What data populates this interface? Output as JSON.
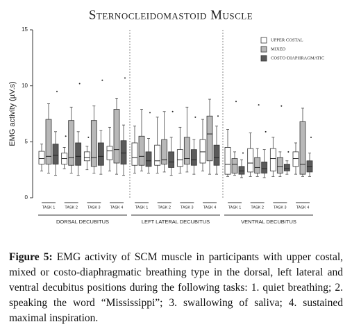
{
  "chart_data": {
    "type": "box",
    "title": "Sternocleidomastoid Muscle",
    "y_label": "EMG activity (µV.s)",
    "ylim": [
      0,
      15
    ],
    "yticks": [
      0,
      5,
      10,
      15
    ],
    "grid": false,
    "legend": "top-right",
    "groups": [
      "DORSAL DECUBITUS",
      "LEFT LATERAL DECUBITUS",
      "VENTRAL DECUBITUS"
    ],
    "categories": [
      "TASK 1",
      "TASK 2",
      "TASK 3",
      "TASK 4",
      "TASK 1",
      "TASK 2",
      "TASK 3",
      "TASK 4",
      "TASK 1",
      "TASK 2",
      "TASK 3",
      "TASK 4"
    ],
    "series": [
      {
        "name": "UPPER COSTAL",
        "color": "#ffffff",
        "values": [
          [
            2.4,
            3.0,
            3.5,
            4.15,
            4.8
          ],
          [
            2.6,
            3.0,
            3.5,
            4.0,
            4.5
          ],
          [
            2.5,
            3.3,
            3.6,
            4.1,
            4.6
          ],
          [
            2.4,
            3.4,
            4.2,
            4.6,
            6.3
          ],
          [
            2.2,
            2.9,
            3.6,
            4.9,
            6.4
          ],
          [
            2.2,
            2.9,
            3.3,
            4.7,
            7.2
          ],
          [
            2.2,
            2.8,
            3.4,
            4.3,
            6.3
          ],
          [
            2.4,
            3.1,
            4.1,
            5.2,
            7.0
          ],
          [
            1.9,
            2.1,
            3.0,
            4.5,
            6.1
          ],
          [
            1.9,
            2.3,
            3.1,
            4.4,
            5.8
          ],
          [
            1.9,
            2.4,
            3.5,
            4.4,
            5.4
          ],
          [
            2.1,
            2.8,
            3.5,
            4.1,
            4.9
          ]
        ],
        "outliers": [
          [],
          [
            5.5
          ],
          [
            5.4
          ],
          [],
          [],
          [],
          [],
          [],
          [],
          [],
          [],
          []
        ]
      },
      {
        "name": "MIXED",
        "color": "#b8b8b8",
        "values": [
          [
            2.2,
            3.0,
            3.7,
            7.0,
            8.4
          ],
          [
            2.2,
            2.9,
            3.6,
            6.9,
            8.1
          ],
          [
            2.2,
            2.8,
            3.6,
            6.9,
            8.2
          ],
          [
            2.1,
            3.1,
            4.3,
            7.9,
            8.9
          ],
          [
            2.4,
            2.9,
            3.7,
            5.5,
            7.9
          ],
          [
            2.3,
            3.0,
            3.4,
            5.2,
            7.7
          ],
          [
            2.3,
            3.0,
            3.5,
            5.4,
            8.1
          ],
          [
            2.1,
            3.3,
            5.7,
            7.3,
            8.8
          ],
          [
            2.0,
            2.2,
            3.0,
            3.5,
            4.1
          ],
          [
            1.9,
            2.2,
            2.7,
            3.6,
            4.4
          ],
          [
            1.9,
            2.2,
            2.8,
            3.6,
            4.1
          ],
          [
            1.9,
            2.1,
            3.0,
            6.8,
            8.0
          ]
        ],
        "outliers": [
          [],
          [],
          [],
          [],
          [],
          [],
          [],
          [],
          [
            8.6
          ],
          [
            8.3
          ],
          [
            8.2
          ],
          []
        ]
      },
      {
        "name": "COSTO-DIAPHRAGMATIC",
        "color": "#5a5a5a",
        "values": [
          [
            2.0,
            3.0,
            3.8,
            4.8,
            5.9
          ],
          [
            2.0,
            2.9,
            3.7,
            4.9,
            5.9
          ],
          [
            2.1,
            2.9,
            3.7,
            4.9,
            6.0
          ],
          [
            2.0,
            3.0,
            4.0,
            5.1,
            6.5
          ],
          [
            2.2,
            2.8,
            3.3,
            4.1,
            5.3
          ],
          [
            2.0,
            2.7,
            3.2,
            4.1,
            5.4
          ],
          [
            2.1,
            2.9,
            3.4,
            4.3,
            5.2
          ],
          [
            2.1,
            2.9,
            3.6,
            4.7,
            6.4
          ],
          [
            1.8,
            2.1,
            2.4,
            2.8,
            3.4
          ],
          [
            1.8,
            2.2,
            2.6,
            3.2,
            4.3
          ],
          [
            2.1,
            2.4,
            2.6,
            3.0,
            3.3
          ],
          [
            1.9,
            2.3,
            2.8,
            3.3,
            4.0
          ]
        ],
        "outliers": [
          [
            9.5
          ],
          [
            10.2
          ],
          [
            10.5
          ],
          [
            10.7
          ],
          [
            7.6
          ],
          [
            7.7
          ],
          [
            7.2
          ],
          [
            7.3
          ],
          [
            4.0
          ],
          [
            5.9
          ],
          [
            4.1
          ],
          [
            5.4
          ]
        ]
      }
    ]
  },
  "caption": {
    "label": "Figure 5:",
    "text": "EMG activity of SCM muscle in participants with upper costal, mixed or costo-diaphragmatic breathing type in the dorsal, left lateral and ventral decubitus positions during the following tasks: 1. quiet breathing; 2. speaking the word “Mississippi”; 3. swallowing of saliva; 4. sustained maximal inspiration."
  }
}
